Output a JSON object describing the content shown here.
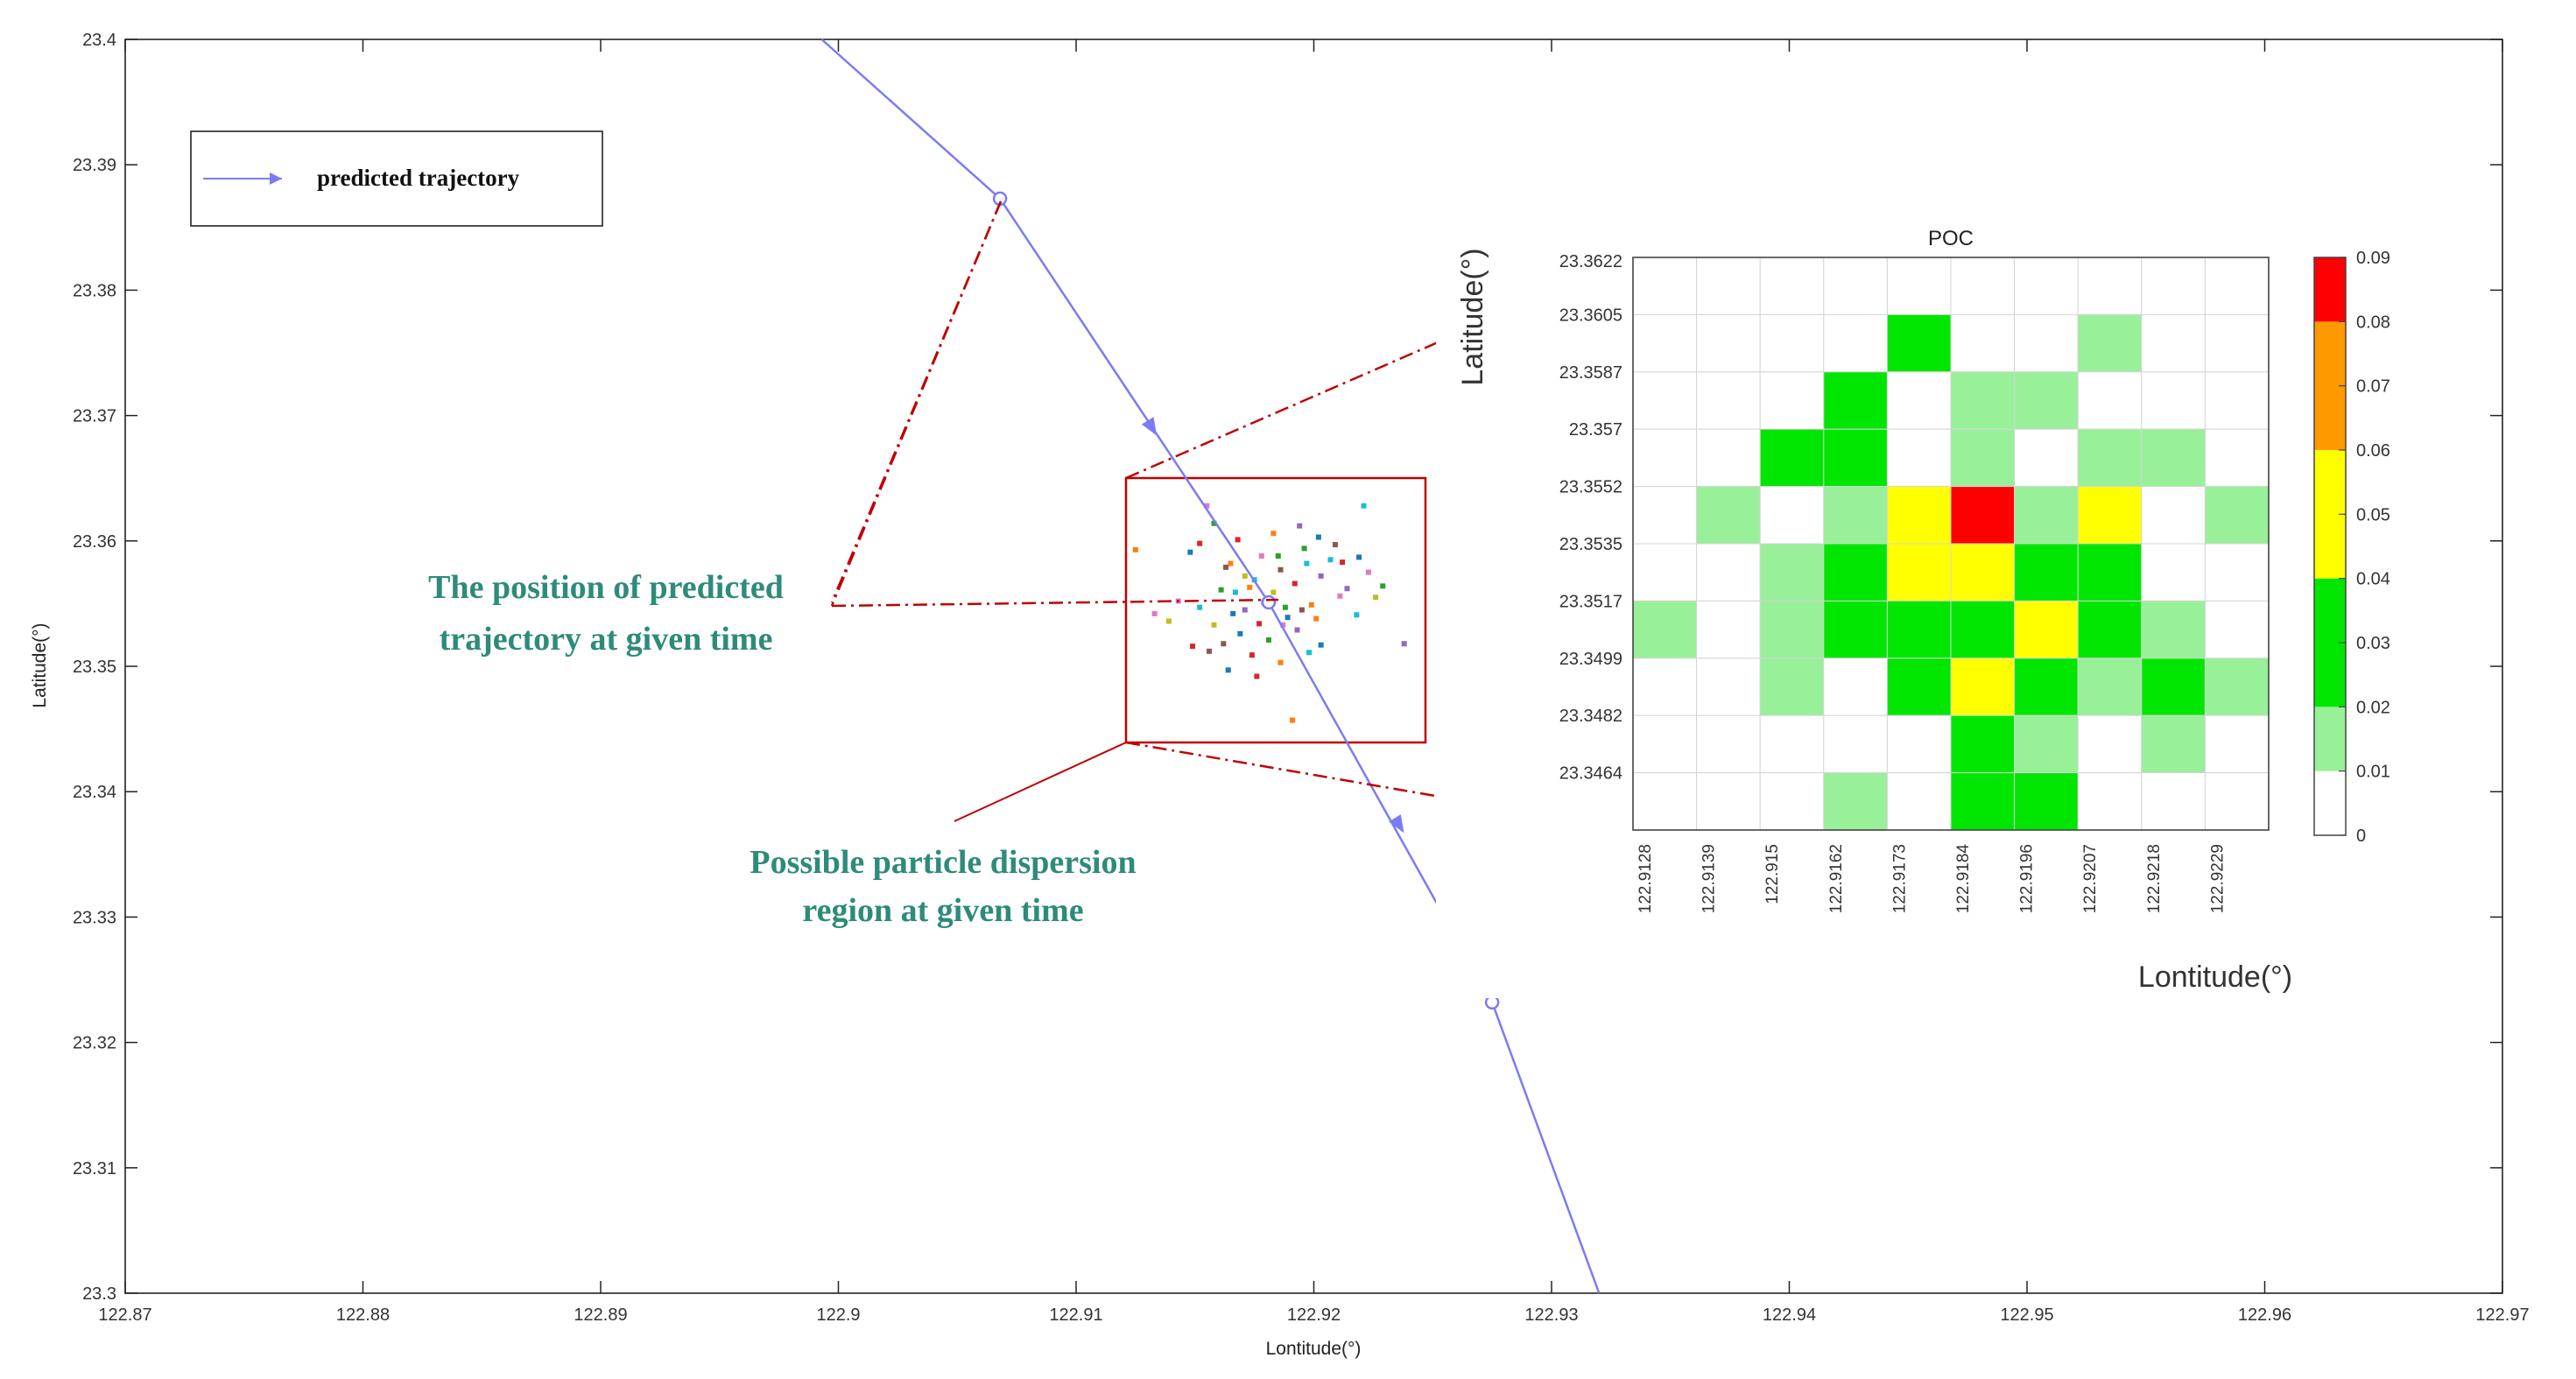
{
  "chart_data": [
    {
      "type": "line",
      "xlabel": "Lontitude(°)",
      "ylabel": "Latitude(°)",
      "xlim": [
        122.87,
        122.97
      ],
      "ylim": [
        23.3,
        23.4
      ],
      "x_ticks": [
        "122.87",
        "122.88",
        "122.89",
        "122.9",
        "122.91",
        "122.92",
        "122.93",
        "122.94",
        "122.95",
        "122.96",
        "122.97"
      ],
      "y_ticks": [
        "23.3",
        "23.31",
        "23.32",
        "23.33",
        "23.34",
        "23.35",
        "23.36",
        "23.37",
        "23.38",
        "23.39",
        "23.4"
      ],
      "legend": {
        "label": "predicted trajectory",
        "placement": "top-left"
      },
      "series": [
        {
          "name": "predicted trajectory",
          "color": "#7b7bf5",
          "x": [
            122.8993,
            122.9068,
            122.9181,
            122.9275,
            122.932
          ],
          "y": [
            23.4,
            23.3873,
            23.3551,
            23.3232,
            23.3
          ],
          "markers": [
            {
              "x": 122.9068,
              "y": 23.3873
            },
            {
              "x": 122.9181,
              "y": 23.3551
            },
            {
              "x": 122.9275,
              "y": 23.3232
            }
          ],
          "arrows": [
            {
              "x": 122.9132,
              "y": 23.369
            },
            {
              "x": 122.9236,
              "y": 23.3373
            }
          ]
        }
      ],
      "particles": {
        "type": "scatter",
        "colors": [
          "#1f77b4",
          "#d62728",
          "#2ca02c",
          "#ff7f0e",
          "#9467bd",
          "#17becf",
          "#e377c2",
          "#bcbd22",
          "#8c564b"
        ],
        "points": [
          [
            122.9148,
            23.3591,
            0
          ],
          [
            122.9152,
            23.3598,
            1
          ],
          [
            122.9161,
            23.3561,
            2
          ],
          [
            122.9165,
            23.3582,
            3
          ],
          [
            122.9171,
            23.3545,
            4
          ],
          [
            122.9175,
            23.3569,
            5
          ],
          [
            122.9178,
            23.3588,
            6
          ],
          [
            122.9183,
            23.3559,
            7
          ],
          [
            122.9186,
            23.3577,
            8
          ],
          [
            122.9189,
            23.3539,
            0
          ],
          [
            122.9192,
            23.3566,
            1
          ],
          [
            122.9196,
            23.3594,
            2
          ],
          [
            122.9199,
            23.3549,
            3
          ],
          [
            122.9203,
            23.3572,
            4
          ],
          [
            122.9207,
            23.3585,
            5
          ],
          [
            122.9211,
            23.3556,
            6
          ],
          [
            122.9158,
            23.3533,
            7
          ],
          [
            122.9162,
            23.3518,
            8
          ],
          [
            122.9169,
            23.3526,
            0
          ],
          [
            122.9174,
            23.3509,
            1
          ],
          [
            122.9181,
            23.3521,
            2
          ],
          [
            122.9186,
            23.3503,
            3
          ],
          [
            122.9193,
            23.3529,
            4
          ],
          [
            122.9198,
            23.3511,
            5
          ],
          [
            122.9143,
            23.3552,
            6
          ],
          [
            122.9139,
            23.3536,
            7
          ],
          [
            122.9156,
            23.3512,
            8
          ],
          [
            122.9166,
            23.3542,
            0
          ],
          [
            122.9177,
            23.3534,
            1
          ],
          [
            122.9188,
            23.3547,
            2
          ],
          [
            122.9201,
            23.3538,
            3
          ],
          [
            122.9214,
            23.3562,
            4
          ],
          [
            122.9218,
            23.3541,
            5
          ],
          [
            122.9223,
            23.3575,
            6
          ],
          [
            122.9226,
            23.3555,
            7
          ],
          [
            122.9209,
            23.3597,
            8
          ],
          [
            122.9202,
            23.3603,
            0
          ],
          [
            122.9168,
            23.3601,
            1
          ],
          [
            122.9158,
            23.3614,
            2
          ],
          [
            122.9183,
            23.3606,
            3
          ],
          [
            122.9194,
            23.3612,
            4
          ],
          [
            122.9221,
            23.3628,
            5
          ],
          [
            122.9155,
            23.3628,
            6
          ],
          [
            122.9238,
            23.3518,
            4
          ],
          [
            122.9149,
            23.3516,
            1
          ],
          [
            122.9164,
            23.3497,
            0
          ],
          [
            122.9191,
            23.3457,
            3
          ],
          [
            122.9176,
            23.3492,
            1
          ],
          [
            122.9185,
            23.3588,
            2
          ],
          [
            122.9171,
            23.3572,
            7
          ],
          [
            122.9179,
            23.3551,
            0
          ],
          [
            122.9197,
            23.3582,
            5
          ],
          [
            122.9212,
            23.3583,
            1
          ],
          [
            122.9229,
            23.3564,
            2
          ],
          [
            122.9219,
            23.3587,
            0
          ],
          [
            122.9125,
            23.3593,
            3
          ],
          [
            122.9133,
            23.3542,
            6
          ],
          [
            122.9203,
            23.3517,
            0
          ],
          [
            122.9173,
            23.3563,
            3
          ],
          [
            122.9163,
            23.3579,
            8
          ],
          [
            122.9167,
            23.3559,
            5
          ],
          [
            122.9187,
            23.3533,
            6
          ],
          [
            122.9195,
            23.3545,
            8
          ],
          [
            122.9152,
            23.3547,
            5
          ]
        ]
      },
      "annotations": [
        {
          "id": "position",
          "lines": [
            "The position of predicted",
            "trajectory at given time"
          ],
          "color": "#2e8b7a"
        },
        {
          "id": "region",
          "lines": [
            "Possible particle dispersion",
            "region at given time"
          ],
          "color": "#2e8b7a"
        }
      ]
    },
    {
      "type": "heatmap",
      "title": "POC",
      "xlabel": "Lontitude(°)",
      "ylabel": "Latitude(°)",
      "x_ticks": [
        "122.9128",
        "122.9139",
        "122.915",
        "122.9162",
        "122.9173",
        "122.9184",
        "122.9196",
        "122.9207",
        "122.9218",
        "122.9229"
      ],
      "y_ticks": [
        "23.3622",
        "23.3605",
        "23.3587",
        "23.357",
        "23.3552",
        "23.3535",
        "23.3517",
        "23.3499",
        "23.3482",
        "23.3464"
      ],
      "values": [
        [
          0,
          0,
          0,
          0,
          0,
          0,
          0,
          0,
          0,
          0
        ],
        [
          0,
          0,
          0,
          0,
          0.03,
          0,
          0,
          0.015,
          0,
          0
        ],
        [
          0,
          0,
          0,
          0.03,
          0,
          0.015,
          0.015,
          0,
          0,
          0
        ],
        [
          0,
          0,
          0.03,
          0.03,
          0,
          0.015,
          0,
          0.015,
          0.015,
          0
        ],
        [
          0,
          0.015,
          0,
          0.015,
          0.05,
          0.09,
          0.015,
          0.05,
          0,
          0.015
        ],
        [
          0,
          0,
          0.015,
          0.03,
          0.05,
          0.05,
          0.03,
          0.03,
          0,
          0
        ],
        [
          0.015,
          0,
          0.015,
          0.03,
          0.03,
          0.03,
          0.05,
          0.03,
          0.015,
          0
        ],
        [
          0,
          0,
          0.015,
          0,
          0.03,
          0.05,
          0.03,
          0.015,
          0.03,
          0.015
        ],
        [
          0,
          0,
          0,
          0,
          0,
          0.03,
          0.015,
          0,
          0.015,
          0
        ],
        [
          0,
          0,
          0,
          0.015,
          0,
          0.03,
          0.03,
          0,
          0,
          0
        ]
      ],
      "colorbar": {
        "ticks": [
          "0",
          "0.01",
          "0.02",
          "0.03",
          "0.04",
          "0.05",
          "0.06",
          "0.07",
          "0.08",
          "0.09"
        ],
        "bands": [
          {
            "from": 0,
            "to": 0.01,
            "color": "#ffffff"
          },
          {
            "from": 0.01,
            "to": 0.02,
            "color": "#98f098"
          },
          {
            "from": 0.02,
            "to": 0.04,
            "color": "#00e600"
          },
          {
            "from": 0.04,
            "to": 0.06,
            "color": "#ffff00"
          },
          {
            "from": 0.06,
            "to": 0.08,
            "color": "#ff9900"
          },
          {
            "from": 0.08,
            "to": 0.09,
            "color": "#ff0000"
          }
        ]
      }
    }
  ]
}
